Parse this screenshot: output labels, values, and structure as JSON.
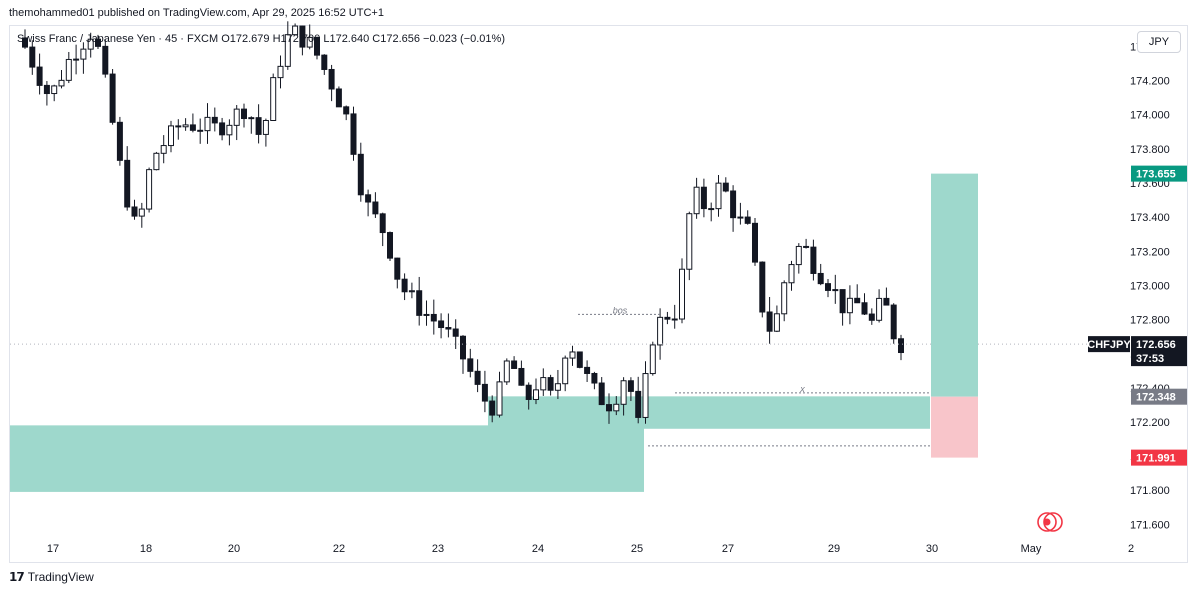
{
  "header": {
    "publisher": "themohammed01 published on TradingView.com, Apr 29, 2025 16:52 UTC+1",
    "symbol_info": "Swiss Franc / Japanese Yen · 45 · FXCM  O172.679  H172.700  L172.640  C172.656  −0.023 (−0.01%)"
  },
  "currency_button": "JPY",
  "footer": {
    "brand": "TradingView",
    "logo": "tv-logo"
  },
  "colors": {
    "zone": "#9ed8cc",
    "target": "#9ed8cc",
    "stop": "#f8c5ca",
    "target_tag": "#089981",
    "stop_tag": "#f23645",
    "entry_tag": "#787b86",
    "price_tag": "#131722"
  },
  "chart_data": {
    "type": "candlestick",
    "symbol": "CHFJPY",
    "timeframe": "45",
    "y_range": [
      171.52,
      174.52
    ],
    "y_ticks": [
      171.6,
      171.8,
      172.0,
      172.2,
      172.4,
      172.6,
      172.8,
      173.0,
      173.2,
      173.4,
      173.6,
      173.8,
      174.0,
      174.2,
      174.4
    ],
    "y_tick_labels": [
      "171.600",
      "171.800",
      "172.000",
      "172.200",
      "172.400",
      "172.600",
      "172.800",
      "173.000",
      "173.200",
      "173.400",
      "173.600",
      "173.800",
      "174.000",
      "174.200",
      "174.400"
    ],
    "x_labels": [
      "17",
      "18",
      "20",
      "22",
      "23",
      "24",
      "25",
      "27",
      "29",
      "30",
      "May",
      "2"
    ],
    "price_path": [
      [
        0,
        174.45
      ],
      [
        4,
        174.1
      ],
      [
        7,
        174.35
      ],
      [
        10,
        174.5
      ],
      [
        12,
        174.1
      ],
      [
        14,
        173.6
      ],
      [
        16,
        173.3
      ],
      [
        18,
        173.75
      ],
      [
        22,
        173.95
      ],
      [
        27,
        173.92
      ],
      [
        31,
        174.05
      ],
      [
        33,
        173.85
      ],
      [
        35,
        174.25
      ],
      [
        37,
        174.5
      ],
      [
        40,
        174.4
      ],
      [
        43,
        174.15
      ],
      [
        45,
        173.95
      ],
      [
        47,
        173.5
      ],
      [
        50,
        173.3
      ],
      [
        52,
        173.0
      ],
      [
        55,
        172.85
      ],
      [
        58,
        172.75
      ],
      [
        61,
        172.55
      ],
      [
        63,
        172.35
      ],
      [
        65,
        172.28
      ],
      [
        67,
        172.6
      ],
      [
        69,
        172.3
      ],
      [
        71,
        172.45
      ],
      [
        73,
        172.32
      ],
      [
        75,
        172.7
      ],
      [
        77,
        172.5
      ],
      [
        79,
        172.35
      ],
      [
        81,
        172.3
      ],
      [
        83,
        172.5
      ],
      [
        85,
        172.1
      ],
      [
        86,
        172.65
      ],
      [
        88,
        172.82
      ],
      [
        90,
        172.85
      ],
      [
        92,
        173.55
      ],
      [
        94,
        173.45
      ],
      [
        96,
        173.6
      ],
      [
        98,
        173.4
      ],
      [
        100,
        173.3
      ],
      [
        101,
        172.95
      ],
      [
        103,
        172.7
      ],
      [
        105,
        173.1
      ],
      [
        107,
        173.25
      ],
      [
        109,
        173.1
      ],
      [
        111,
        173.0
      ],
      [
        113,
        172.85
      ],
      [
        115,
        172.9
      ],
      [
        117,
        172.75
      ],
      [
        118,
        172.95
      ],
      [
        120,
        172.66
      ]
    ],
    "horizontal_lines": [
      {
        "name": "bos",
        "label": "bos",
        "price": 172.83
      },
      {
        "name": "x-line",
        "label": "x",
        "price": 172.37
      },
      {
        "name": "low-line",
        "label": "",
        "price": 172.06
      }
    ],
    "zones": [
      {
        "name": "lower-demand-zone",
        "top": 172.18,
        "bottom": 171.79
      },
      {
        "name": "middle-demand-zone",
        "top": 172.35,
        "bottom": 172.16
      }
    ],
    "position": {
      "type": "long",
      "entry": 172.348,
      "target": 173.655,
      "stop": 171.991,
      "entry_label": "172.348",
      "target_label": "173.655",
      "stop_label": "171.991"
    },
    "last_price": {
      "symbol": "CHFJPY",
      "value": "172.656",
      "countdown": "37:53",
      "price": 172.656
    }
  }
}
